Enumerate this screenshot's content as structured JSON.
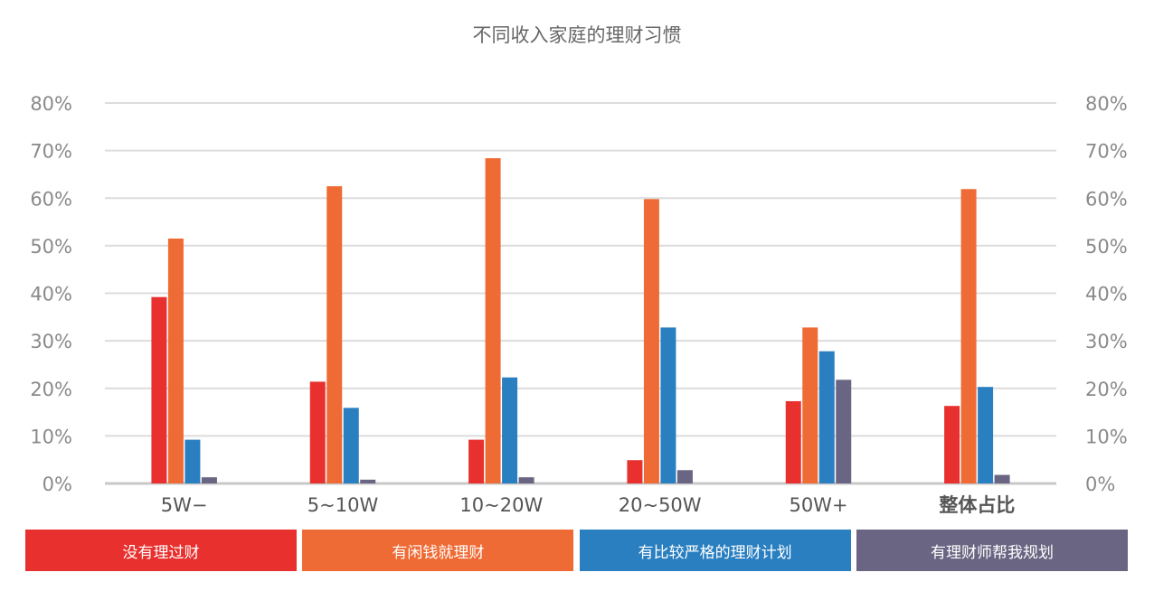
{
  "chart_data": {
    "type": "bar",
    "title": "不同收入家庭的理财习惯",
    "categories": [
      "5W−",
      "5~10W",
      "10~20W",
      "20~50W",
      "50W+",
      "整体占比"
    ],
    "series": [
      {
        "name": "没有理过财",
        "color": "#e8302e",
        "values": [
          39.2,
          21.4,
          9.2,
          4.9,
          17.3,
          16.3
        ]
      },
      {
        "name": "有闲钱就理财",
        "color": "#ef6b35",
        "values": [
          51.5,
          62.5,
          68.4,
          59.8,
          32.8,
          61.9
        ]
      },
      {
        "name": "有比较严格的理财计划",
        "color": "#2a7fc1",
        "values": [
          9.2,
          15.9,
          22.3,
          32.8,
          27.8,
          20.3
        ]
      },
      {
        "name": "有理财师帮我规划",
        "color": "#6a6582",
        "values": [
          1.3,
          0.8,
          1.3,
          2.8,
          21.8,
          1.8
        ]
      }
    ],
    "ylim": [
      0,
      80
    ],
    "yticks": [
      0,
      10,
      20,
      30,
      40,
      50,
      60,
      70,
      80
    ],
    "ytick_labels": [
      "0%",
      "10%",
      "20%",
      "30%",
      "40%",
      "50%",
      "60%",
      "70%",
      "80%"
    ],
    "grid": true,
    "legend_position": "bottom"
  }
}
